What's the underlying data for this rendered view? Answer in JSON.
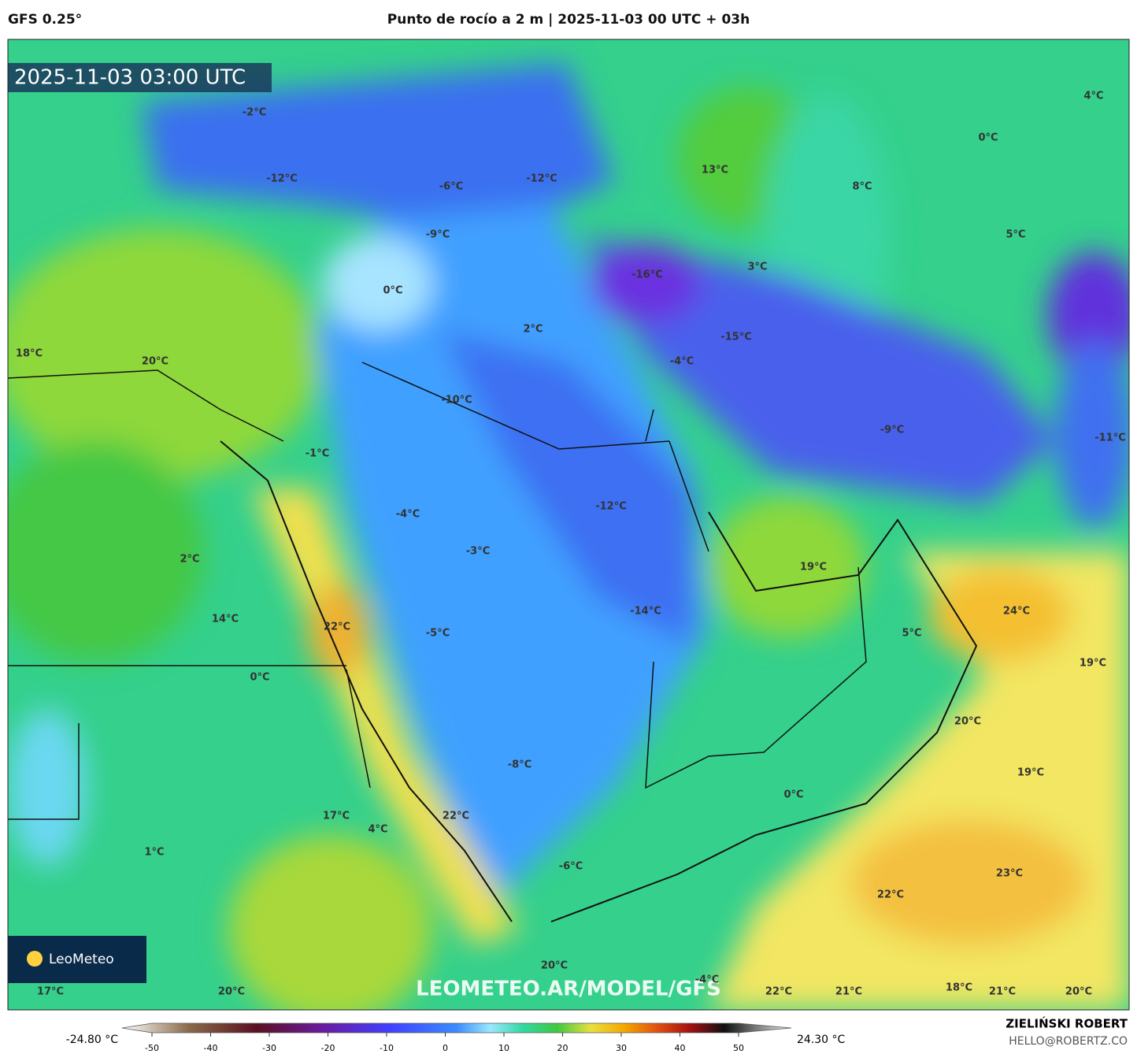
{
  "header": {
    "model": "GFS 0.25°",
    "title": "Punto de rocío a 2 m | 2025-11-03 00 UTC + 03h"
  },
  "map": {
    "valid_time": "2025-11-03 03:00 UTC",
    "watermark": "LEOMETEO.AR/MODEL/GFS",
    "logo": "LeoMeteo",
    "labels": [
      "-2°C",
      "-12°C",
      "-6°C",
      "-12°C",
      "13°C",
      "4°C",
      "0°C",
      "8°C",
      "-9°C",
      "5°C",
      "3°C",
      "-16°C",
      "0°C",
      "2°C",
      "-15°C",
      "18°C",
      "20°C",
      "-4°C",
      "-10°C",
      "-9°C",
      "-11°C",
      "-1°C",
      "-12°C",
      "-4°C",
      "-3°C",
      "2°C",
      "19°C",
      "24°C",
      "-14°C",
      "14°C",
      "22°C",
      "-5°C",
      "5°C",
      "19°C",
      "0°C",
      "20°C",
      "-8°C",
      "19°C",
      "0°C",
      "17°C",
      "22°C",
      "4°C",
      "1°C",
      "-6°C",
      "23°C",
      "22°C",
      "20°C",
      "-4°C",
      "17°C",
      "20°C",
      "22°C",
      "21°C",
      "18°C",
      "21°C",
      "20°C"
    ]
  },
  "colorbar": {
    "min_label": "-24.80 °C",
    "max_label": "24.30 °C",
    "ticks": [
      -50,
      -40,
      -30,
      -20,
      -10,
      0,
      10,
      20,
      30,
      40,
      50
    ]
  },
  "credit": {
    "name": "ZIELIŃSKI ROBERT",
    "email": "HELLO@ROBERTZ.CO"
  }
}
